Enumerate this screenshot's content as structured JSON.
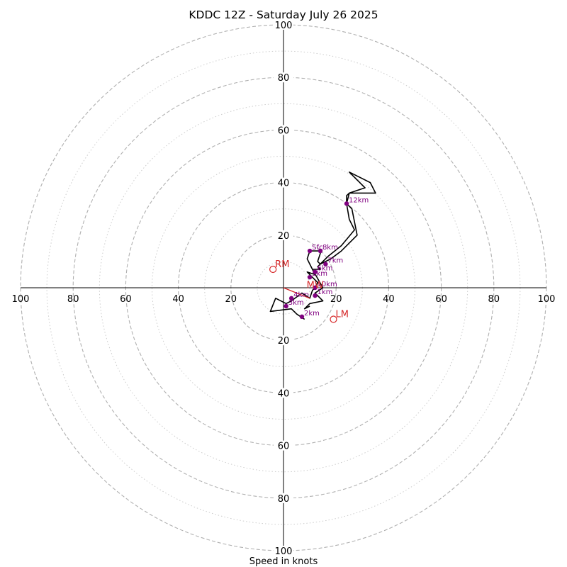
{
  "chart_data": {
    "type": "hodograph",
    "title": "KDDC 12Z - Saturday July 26 2025",
    "xlabel": "Speed in knots",
    "xlim": [
      -100,
      100
    ],
    "ylim": [
      -100,
      100
    ],
    "major_rings": [
      20,
      40,
      60,
      80,
      100
    ],
    "minor_rings": [
      10,
      30,
      50,
      70,
      90
    ],
    "tick_labels": [
      "20",
      "40",
      "60",
      "80",
      "100"
    ],
    "trace": [
      [
        8,
        -12
      ],
      [
        5,
        -10
      ],
      [
        3,
        -8
      ],
      [
        -5,
        -9
      ],
      [
        -3,
        -4
      ],
      [
        1,
        -6
      ],
      [
        3,
        -5
      ],
      [
        7,
        -2
      ],
      [
        10,
        -4
      ],
      [
        11,
        -1
      ],
      [
        12,
        0
      ],
      [
        13,
        2
      ],
      [
        11,
        4
      ],
      [
        9,
        6
      ],
      [
        12,
        5
      ],
      [
        10,
        9
      ],
      [
        9,
        11
      ],
      [
        10,
        14
      ],
      [
        12,
        14
      ],
      [
        14,
        14
      ],
      [
        14,
        13
      ],
      [
        13,
        10
      ],
      [
        14,
        9
      ],
      [
        18,
        11
      ],
      [
        22,
        14
      ],
      [
        28,
        20
      ],
      [
        26,
        30
      ],
      [
        24,
        32
      ],
      [
        24,
        35
      ],
      [
        25,
        36
      ],
      [
        35,
        36
      ],
      [
        33,
        40
      ],
      [
        25,
        44
      ],
      [
        29,
        40
      ],
      [
        31,
        38
      ],
      [
        25,
        36
      ],
      [
        24,
        32
      ],
      [
        25,
        26
      ],
      [
        27,
        22
      ],
      [
        22,
        16
      ],
      [
        17,
        12
      ],
      [
        14,
        9
      ],
      [
        13,
        8
      ],
      [
        14,
        7
      ],
      [
        11,
        7
      ],
      [
        15,
        0
      ],
      [
        12,
        -2
      ],
      [
        15,
        -5
      ],
      [
        10,
        -6
      ],
      [
        8,
        -8
      ],
      [
        10,
        -7
      ]
    ],
    "height_markers": [
      {
        "label": "Sfc",
        "u": 10,
        "v": 14
      },
      {
        "label": "8km",
        "u": 14,
        "v": 14
      },
      {
        "label": "7km",
        "u": 16,
        "v": 9
      },
      {
        "label": "6km",
        "u": 12,
        "v": 6
      },
      {
        "label": "5km",
        "u": 10,
        "v": 4
      },
      {
        "label": "10km",
        "u": 12,
        "v": 0
      },
      {
        "label": "1km",
        "u": 12,
        "v": -3
      },
      {
        "label": "4km",
        "u": 3,
        "v": -4
      },
      {
        "label": "3km",
        "u": 1,
        "v": -7
      },
      {
        "label": "2km",
        "u": 7,
        "v": -11
      },
      {
        "label": "12km",
        "u": 24,
        "v": 32
      }
    ],
    "storm_motions": [
      {
        "label": "RM",
        "u": -4,
        "v": 7
      },
      {
        "label": "LM",
        "u": 19,
        "v": -12
      },
      {
        "label": "MW",
        "u": 8,
        "v": -1
      }
    ],
    "shear_vector": {
      "from": [
        0,
        0
      ],
      "to": [
        10,
        -4
      ]
    },
    "colors": {
      "trace": "#000000",
      "markers": "#800080",
      "storm_motion": "#d62728",
      "major_ring": "#b0b0b0",
      "minor_ring": "#cccccc",
      "axis": "#000000"
    }
  }
}
